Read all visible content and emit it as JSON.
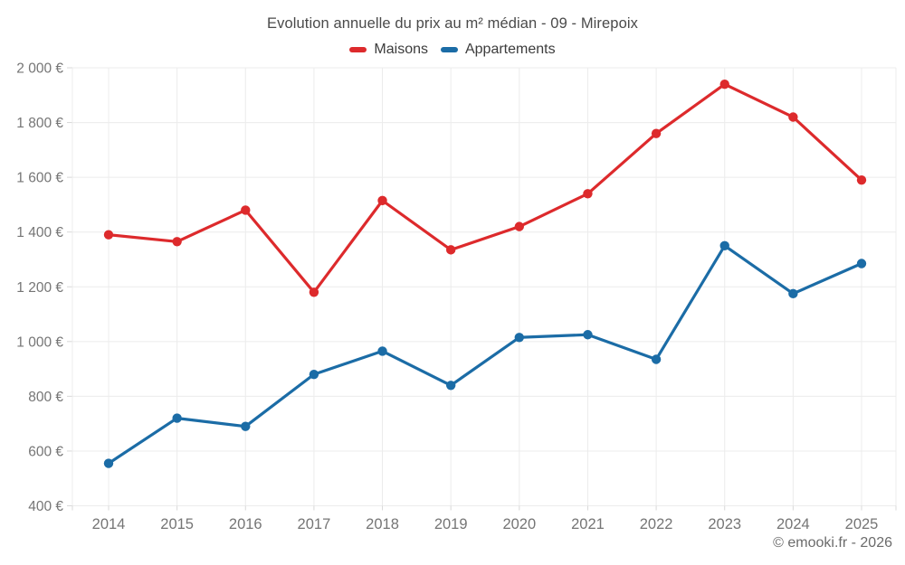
{
  "chart_data": {
    "type": "line",
    "title": "Evolution annuelle du prix au m² médian - 09 - Mirepoix",
    "categories": [
      "2014",
      "2015",
      "2016",
      "2017",
      "2018",
      "2019",
      "2020",
      "2021",
      "2022",
      "2023",
      "2024",
      "2025"
    ],
    "series": [
      {
        "name": "Maisons",
        "color": "#dd2a2c",
        "values": [
          1390,
          1365,
          1480,
          1180,
          1515,
          1335,
          1420,
          1540,
          1760,
          1940,
          1820,
          1590
        ]
      },
      {
        "name": "Appartements",
        "color": "#1b6ca6",
        "values": [
          555,
          720,
          690,
          880,
          965,
          840,
          1015,
          1025,
          935,
          1350,
          1175,
          1285
        ]
      }
    ],
    "xlabel": "",
    "ylabel": "",
    "ylim": [
      400,
      2000
    ],
    "ytick_step": 200,
    "ytick_suffix": "€",
    "thousands_separator": " ",
    "grid": true,
    "legend_position": "top",
    "colors": {
      "grid": "#ececec",
      "tick": "#d8d8d8",
      "axis_text": "#757575",
      "title_text": "#4a4a4a",
      "legend_text": "#3c3c3c",
      "footer_text": "#6b6b6b",
      "background": "#ffffff"
    }
  },
  "footer": {
    "credit": "© emooki.fr - 2026"
  }
}
